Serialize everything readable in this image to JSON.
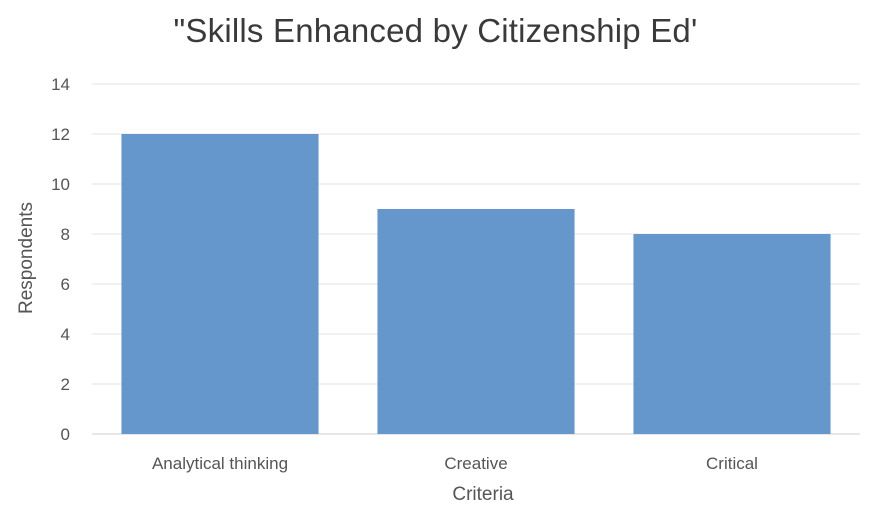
{
  "chart_data": {
    "type": "bar",
    "title": "\"Skills Enhanced by Citizenship Ed'",
    "xlabel": "Criteria",
    "ylabel": "Respondents",
    "categories": [
      "Analytical thinking",
      "Creative",
      "Critical"
    ],
    "values": [
      12,
      9,
      8
    ],
    "ylim": [
      0,
      14
    ],
    "yticks": [
      0,
      2,
      4,
      6,
      8,
      10,
      12,
      14
    ],
    "grid": true,
    "legend": "none",
    "colors": {
      "bar": "#6597cd",
      "grid": "#e3e3e3",
      "axis": "#cfcfcf"
    }
  }
}
